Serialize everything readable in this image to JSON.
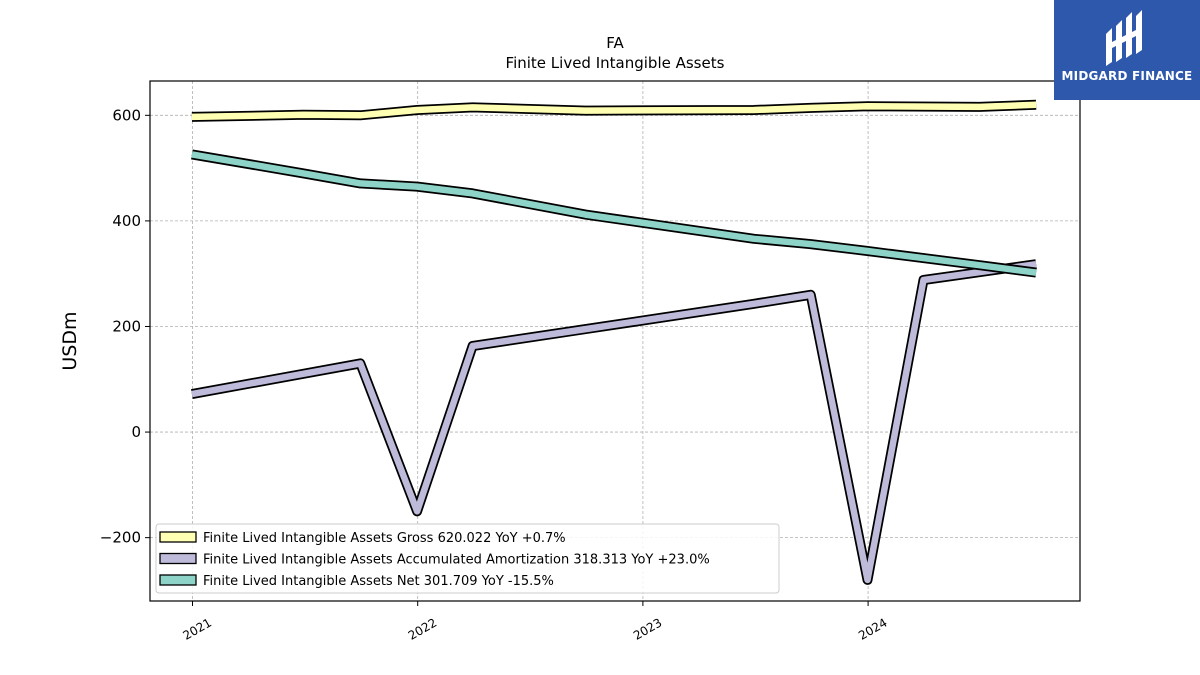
{
  "chart_data": {
    "type": "line",
    "title": "FA",
    "subtitle": "Finite Lived Intangible Assets",
    "ylabel": "USDm",
    "xlabel": "",
    "ylim": [
      -320,
      665
    ],
    "yticks": [
      -200,
      0,
      200,
      400,
      600
    ],
    "ytick_labels": [
      "−200",
      "0",
      "200",
      "400",
      "600"
    ],
    "xticks": [
      "2021",
      "2022",
      "2023",
      "2024"
    ],
    "grid": true,
    "legend_position": "lower-left",
    "series": [
      {
        "name": "Finite Lived Intangible Assets Gross",
        "legend": "Finite Lived Intangible Assets Gross  620.022 YoY +0.7%",
        "color": "#ffffb3",
        "points": [
          [
            "2020-12-31",
            597
          ],
          [
            "2021-06-30",
            601
          ],
          [
            "2021-09-30",
            600
          ],
          [
            "2021-12-31",
            610
          ],
          [
            "2022-03-31",
            615
          ],
          [
            "2022-09-30",
            609
          ],
          [
            "2023-06-30",
            610
          ],
          [
            "2023-09-30",
            614
          ],
          [
            "2023-12-31",
            617
          ],
          [
            "2024-06-30",
            616
          ],
          [
            "2024-09-30",
            620
          ]
        ]
      },
      {
        "name": "Finite Lived Intangible Assets Accumulated Amortization",
        "legend": "Finite Lived Intangible Assets Accumulated Amortization  318.313 YoY +23.0%",
        "color": "#bebada",
        "points": [
          [
            "2020-12-31",
            72
          ],
          [
            "2021-09-30",
            130
          ],
          [
            "2021-12-31",
            -150
          ],
          [
            "2022-03-31",
            163
          ],
          [
            "2022-09-30",
            195
          ],
          [
            "2023-06-30",
            243
          ],
          [
            "2023-09-30",
            260
          ],
          [
            "2023-12-31",
            -280
          ],
          [
            "2024-03-31",
            288
          ],
          [
            "2024-09-30",
            318
          ]
        ]
      },
      {
        "name": "Finite Lived Intangible Assets Net",
        "legend": "Finite Lived Intangible Assets Net  301.709 YoY -15.5%",
        "color": "#8dd3c7",
        "points": [
          [
            "2020-12-31",
            526
          ],
          [
            "2021-06-30",
            490
          ],
          [
            "2021-09-30",
            471
          ],
          [
            "2021-12-31",
            465
          ],
          [
            "2022-03-31",
            452
          ],
          [
            "2022-09-30",
            412
          ],
          [
            "2023-06-30",
            366
          ],
          [
            "2023-09-30",
            356
          ],
          [
            "2023-12-31",
            343
          ],
          [
            "2024-06-30",
            316
          ],
          [
            "2024-09-30",
            302
          ]
        ]
      }
    ]
  },
  "branding": {
    "logo_text": "MIDGARD FINANCE",
    "logo_color": "#2d58ac"
  }
}
